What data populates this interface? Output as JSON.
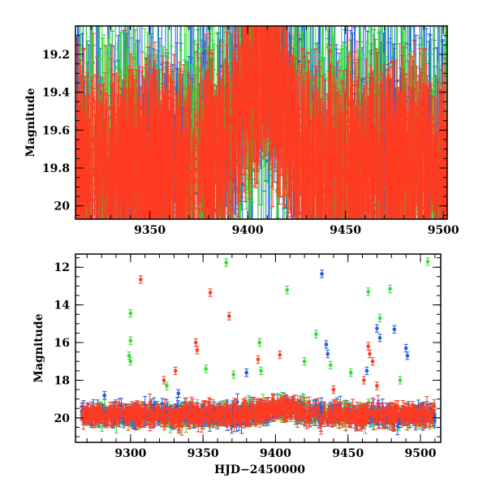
{
  "chart_data": [
    {
      "type": "scatter",
      "title": "",
      "xlabel": "",
      "ylabel": "Magnitude",
      "xlim": [
        9312,
        9502
      ],
      "ylim": [
        20.07,
        19.05
      ],
      "x_ticks": [
        9350,
        9400,
        9450,
        9500
      ],
      "y_ticks": [
        19.2,
        19.4,
        19.6,
        19.8,
        20
      ],
      "y_tick_labels": [
        "19.2",
        "19.4",
        "19.6",
        "19.8",
        "20"
      ],
      "series": [
        {
          "name": "blue",
          "color": "#1f5fdc",
          "trend": "light curve with brightening peak near HJD 9407 (mag ~19.3); baseline ~19.75; large scatter"
        },
        {
          "name": "green",
          "color": "#33dd33",
          "trend": "same light curve, similar scatter"
        },
        {
          "name": "red",
          "color": "#ff3b22",
          "trend": "dense band tracing brightening peak near HJD 9407 (mag ~19.3); baseline ~19.75"
        }
      ],
      "model": {
        "baseline": 19.78,
        "peak_mag": 19.3,
        "peak_x": 9407,
        "width": 16
      }
    },
    {
      "type": "scatter",
      "title": "",
      "xlabel": "HJD−2450000",
      "ylabel": "Magnitude",
      "xlim": [
        9262,
        9514
      ],
      "ylim": [
        21.3,
        11.3
      ],
      "x_ticks": [
        9300,
        9350,
        9400,
        9450,
        9500
      ],
      "y_ticks": [
        12,
        14,
        16,
        18,
        20
      ],
      "y_tick_labels": [
        "12",
        "14",
        "16",
        "18",
        "20"
      ],
      "series": [
        {
          "name": "blue",
          "color": "#1f5fdc",
          "trend": "baseline ~19.8 with outliers up to ~12.3"
        },
        {
          "name": "green",
          "color": "#33dd33",
          "trend": "baseline ~19.8 with many bright outliers to ~11.7"
        },
        {
          "name": "red",
          "color": "#ff3b22",
          "trend": "baseline ~19.8 with outliers to ~12.6"
        }
      ],
      "outliers": [
        {
          "series": "red",
          "x": 9307,
          "y": 12.65
        },
        {
          "series": "red",
          "x": 9355,
          "y": 13.35
        },
        {
          "series": "red",
          "x": 9368,
          "y": 14.6
        },
        {
          "series": "red",
          "x": 9345,
          "y": 16.0
        },
        {
          "series": "red",
          "x": 9346,
          "y": 16.4
        },
        {
          "series": "red",
          "x": 9388,
          "y": 16.9
        },
        {
          "series": "red",
          "x": 9403,
          "y": 16.65
        },
        {
          "series": "red",
          "x": 9323,
          "y": 18.0
        },
        {
          "series": "red",
          "x": 9331,
          "y": 17.5
        },
        {
          "series": "red",
          "x": 9464,
          "y": 16.2
        },
        {
          "series": "red",
          "x": 9465,
          "y": 16.6
        },
        {
          "series": "red",
          "x": 9467,
          "y": 17.0
        },
        {
          "series": "red",
          "x": 9461,
          "y": 18.0
        },
        {
          "series": "red",
          "x": 9440,
          "y": 18.5
        },
        {
          "series": "red",
          "x": 9470,
          "y": 18.3
        },
        {
          "series": "green",
          "x": 9300,
          "y": 14.45
        },
        {
          "series": "green",
          "x": 9300,
          "y": 15.9
        },
        {
          "series": "green",
          "x": 9299,
          "y": 16.7
        },
        {
          "series": "green",
          "x": 9300,
          "y": 17.0
        },
        {
          "series": "green",
          "x": 9366,
          "y": 11.75
        },
        {
          "series": "green",
          "x": 9408,
          "y": 13.2
        },
        {
          "series": "green",
          "x": 9464,
          "y": 13.3
        },
        {
          "series": "green",
          "x": 9479,
          "y": 13.15
        },
        {
          "series": "green",
          "x": 9505,
          "y": 11.7
        },
        {
          "series": "green",
          "x": 9428,
          "y": 15.55
        },
        {
          "series": "green",
          "x": 9472,
          "y": 14.7
        },
        {
          "series": "green",
          "x": 9389,
          "y": 16.0
        },
        {
          "series": "green",
          "x": 9390,
          "y": 17.5
        },
        {
          "series": "green",
          "x": 9325,
          "y": 18.3
        },
        {
          "series": "green",
          "x": 9352,
          "y": 17.4
        },
        {
          "series": "green",
          "x": 9371,
          "y": 17.7
        },
        {
          "series": "green",
          "x": 9420,
          "y": 17.0
        },
        {
          "series": "green",
          "x": 9438,
          "y": 17.2
        },
        {
          "series": "green",
          "x": 9452,
          "y": 17.6
        },
        {
          "series": "green",
          "x": 9486,
          "y": 18.0
        },
        {
          "series": "blue",
          "x": 9432,
          "y": 12.35
        },
        {
          "series": "blue",
          "x": 9470,
          "y": 15.25
        },
        {
          "series": "blue",
          "x": 9472,
          "y": 15.75
        },
        {
          "series": "blue",
          "x": 9482,
          "y": 15.3
        },
        {
          "series": "blue",
          "x": 9490,
          "y": 16.3
        },
        {
          "series": "blue",
          "x": 9491,
          "y": 16.7
        },
        {
          "series": "blue",
          "x": 9380,
          "y": 17.6
        },
        {
          "series": "blue",
          "x": 9435,
          "y": 16.1
        },
        {
          "series": "blue",
          "x": 9436,
          "y": 16.6
        },
        {
          "series": "blue",
          "x": 9463,
          "y": 17.5
        },
        {
          "series": "blue",
          "x": 9282,
          "y": 18.8
        },
        {
          "series": "blue",
          "x": 9333,
          "y": 18.7
        }
      ]
    }
  ],
  "colors": {
    "blue": "#1f5fdc",
    "green": "#33dd33",
    "red": "#ff3b22",
    "axes": "#000000"
  }
}
